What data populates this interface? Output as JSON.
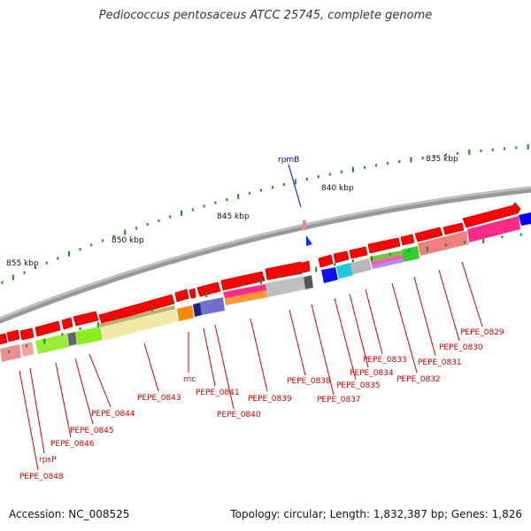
{
  "header": {
    "title": "Pediococcus pentosaceus ATCC 25745, complete genome"
  },
  "footer": {
    "accession": "Accession: NC_008525",
    "summary": "Topology: circular; Length: 1,832,387 bp; Genes: 1,826"
  },
  "ruler": {
    "labels": [
      "855 kbp",
      "850 kbp",
      "845 kbp",
      "840 kbp",
      "835 kbp"
    ]
  },
  "genes": [
    {
      "name": "PEPE_0829",
      "color": "#d40000"
    },
    {
      "name": "PEPE_0830",
      "color": "#d40000"
    },
    {
      "name": "PEPE_0831",
      "color": "#d40000"
    },
    {
      "name": "PEPE_0832",
      "color": "#d40000"
    },
    {
      "name": "PEPE_0833",
      "color": "#d40000"
    },
    {
      "name": "PEPE_0834",
      "color": "#d40000"
    },
    {
      "name": "PEPE_0835",
      "color": "#d40000"
    },
    {
      "name": "PEPE_0837",
      "color": "#d40000"
    },
    {
      "name": "PEPE_0838",
      "color": "#d40000"
    },
    {
      "name": "PEPE_0839",
      "color": "#d40000"
    },
    {
      "name": "PEPE_0840",
      "color": "#d40000"
    },
    {
      "name": "PEPE_0841",
      "color": "#d40000"
    },
    {
      "name": "rnc",
      "color": "#d40000"
    },
    {
      "name": "PEPE_0843",
      "color": "#d40000"
    },
    {
      "name": "PEPE_0844",
      "color": "#d40000"
    },
    {
      "name": "PEPE_0845",
      "color": "#d40000"
    },
    {
      "name": "PEPE_0846",
      "color": "#d40000"
    },
    {
      "name": "rpsP",
      "color": "#d40000"
    },
    {
      "name": "PEPE_0848",
      "color": "#d40000"
    },
    {
      "name": "rpmB",
      "color": "#0000cc"
    }
  ],
  "colors": {
    "backbone": "#8a8a8a",
    "cds": "#ff0000",
    "ticks": "#1f8a1f",
    "label_red": "#d40000",
    "label_blue": "#0000cc"
  }
}
